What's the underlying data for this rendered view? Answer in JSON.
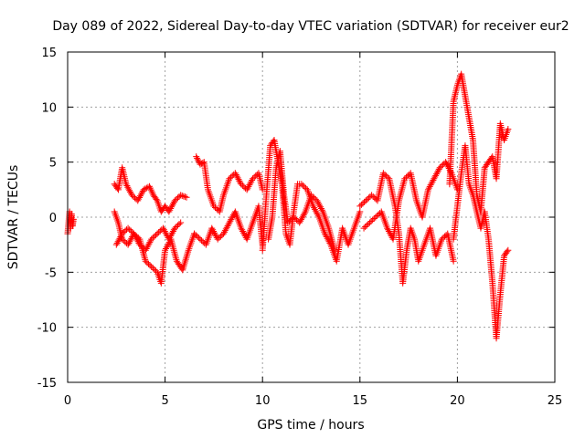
{
  "chart_data": {
    "type": "scatter",
    "title": "Day 089 of 2022, Sidereal Day-to-day VTEC variation (SDTVAR) for receiver eur2",
    "xlabel": "GPS time / hours",
    "ylabel": "SDTVAR / TECUs",
    "xlim": [
      0,
      25
    ],
    "ylim": [
      -15,
      15
    ],
    "xticks": [
      0,
      5,
      10,
      15,
      20,
      25
    ],
    "yticks": [
      -15,
      -10,
      -5,
      0,
      5,
      10,
      15
    ],
    "grid": true,
    "marker": "+",
    "series": [
      {
        "name": "SDTVAR",
        "color": "#ff0000",
        "segments": [
          {
            "x": [
              0.0,
              0.1,
              0.15,
              0.2,
              0.25,
              0.3
            ],
            "y": [
              -1.5,
              0.5,
              -1.0,
              0.3,
              -0.8,
              -0.2
            ]
          },
          {
            "x": [
              2.4,
              2.6,
              2.8,
              3.0,
              3.3,
              3.6,
              3.9,
              4.2,
              4.4,
              4.6,
              4.8,
              5.0,
              5.2,
              5.5,
              5.8,
              6.1
            ],
            "y": [
              3.0,
              2.5,
              4.5,
              3.0,
              2.0,
              1.5,
              2.5,
              2.8,
              2.0,
              1.5,
              0.5,
              1.0,
              0.5,
              1.5,
              2.0,
              1.8
            ]
          },
          {
            "x": [
              2.4,
              2.6,
              2.8,
              3.1,
              3.4,
              3.7,
              4.0,
              4.3,
              4.6,
              4.8,
              5.0,
              5.3,
              5.6,
              5.9,
              6.2,
              6.5
            ],
            "y": [
              0.5,
              -0.5,
              -2.0,
              -2.5,
              -1.5,
              -2.0,
              -4.0,
              -4.5,
              -5.0,
              -6.0,
              -3.0,
              -2.0,
              -4.0,
              -4.8,
              -3.0,
              -1.5
            ]
          },
          {
            "x": [
              2.5,
              2.8,
              3.1,
              3.4,
              3.7,
              4.0,
              4.3,
              4.6,
              4.9,
              5.2,
              5.5,
              5.8
            ],
            "y": [
              -2.5,
              -1.5,
              -1.0,
              -1.5,
              -2.5,
              -3.0,
              -2.0,
              -1.5,
              -1.0,
              -2.0,
              -1.0,
              -0.5
            ]
          },
          {
            "x": [
              6.6,
              6.8,
              7.0,
              7.2,
              7.5,
              7.8,
              8.0,
              8.3,
              8.6,
              8.9,
              9.2,
              9.5,
              9.8,
              10.0
            ],
            "y": [
              5.5,
              4.8,
              5.0,
              2.5,
              1.0,
              0.5,
              2.0,
              3.5,
              4.0,
              3.0,
              2.5,
              3.5,
              4.0,
              2.5
            ]
          },
          {
            "x": [
              6.5,
              6.8,
              7.1,
              7.4,
              7.7,
              8.0,
              8.3,
              8.6,
              8.9,
              9.2,
              9.5,
              9.8,
              10.0
            ],
            "y": [
              -1.5,
              -2.0,
              -2.5,
              -1.0,
              -2.0,
              -1.5,
              -0.5,
              0.5,
              -1.0,
              -2.0,
              -0.5,
              1.0,
              -2.5
            ]
          },
          {
            "x": [
              10.0,
              10.2,
              10.4,
              10.6,
              10.8,
              11.0,
              11.2,
              11.4,
              11.6,
              11.8,
              12.0,
              12.3,
              12.6,
              12.9,
              13.2,
              13.5,
              13.8,
              14.1,
              14.4,
              14.7,
              15.0
            ],
            "y": [
              -3.0,
              2.0,
              6.5,
              7.0,
              5.0,
              3.0,
              -1.5,
              -2.5,
              0.5,
              3.0,
              3.0,
              2.5,
              1.0,
              0.0,
              -1.5,
              -2.5,
              -4.0,
              -1.0,
              -2.5,
              -1.0,
              0.5
            ]
          },
          {
            "x": [
              10.3,
              10.5,
              10.7,
              10.9,
              11.1,
              11.3,
              11.6,
              11.9,
              12.2,
              12.5,
              12.8,
              13.1,
              13.4,
              13.7
            ],
            "y": [
              -2.0,
              0.0,
              4.5,
              6.0,
              2.0,
              -0.5,
              0.0,
              -0.5,
              0.5,
              2.0,
              1.5,
              0.5,
              -1.0,
              -3.0
            ]
          },
          {
            "x": [
              15.0,
              15.3,
              15.6,
              15.9,
              16.2,
              16.5,
              16.8,
              17.0,
              17.2,
              17.4,
              17.6,
              17.8,
              18.0,
              18.3,
              18.6,
              18.9,
              19.2,
              19.5,
              19.8
            ],
            "y": [
              1.0,
              1.5,
              2.0,
              1.5,
              4.0,
              3.5,
              1.0,
              -1.5,
              -6.0,
              -3.0,
              -1.0,
              -2.0,
              -4.0,
              -2.5,
              -1.0,
              -3.5,
              -2.0,
              -1.5,
              -4.0
            ]
          },
          {
            "x": [
              15.2,
              15.5,
              15.8,
              16.1,
              16.4,
              16.7,
              17.0,
              17.3,
              17.6,
              17.9,
              18.2,
              18.5,
              18.8,
              19.1,
              19.4,
              19.7,
              20.0
            ],
            "y": [
              -1.0,
              -0.5,
              0.0,
              0.5,
              -1.0,
              -2.0,
              1.5,
              3.5,
              4.0,
              1.5,
              0.0,
              2.5,
              3.5,
              4.5,
              5.0,
              4.0,
              2.5
            ]
          },
          {
            "x": [
              19.6,
              19.8,
              20.0,
              20.2,
              20.4,
              20.6,
              20.8,
              21.0,
              21.2,
              21.4,
              21.6,
              21.8,
              22.0,
              22.2,
              22.4,
              22.6
            ],
            "y": [
              3.0,
              10.5,
              12.0,
              13.0,
              11.0,
              9.0,
              7.0,
              2.0,
              0.5,
              4.5,
              5.0,
              5.5,
              3.5,
              8.5,
              7.0,
              8.0
            ]
          },
          {
            "x": [
              19.8,
              20.0,
              20.2,
              20.4,
              20.6,
              20.8,
              21.0,
              21.2,
              21.4,
              21.6,
              21.8,
              22.0,
              22.2,
              22.4,
              22.6
            ],
            "y": [
              -2.0,
              1.0,
              4.0,
              6.5,
              3.0,
              2.0,
              0.5,
              -1.0,
              0.5,
              -2.0,
              -6.0,
              -11.0,
              -7.0,
              -3.5,
              -3.0
            ]
          }
        ]
      }
    ]
  }
}
